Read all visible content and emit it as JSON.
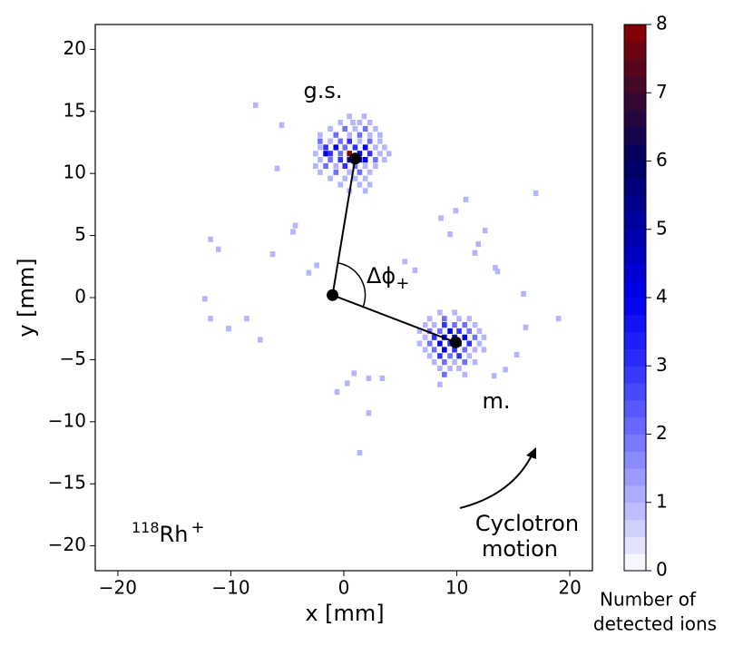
{
  "chart_data": {
    "type": "histogram2d",
    "xlabel": "x [mm]",
    "ylabel": "y [mm]",
    "xlim": [
      -22,
      22
    ],
    "ylim": [
      -22,
      22
    ],
    "xticks": [
      {
        "value": -20,
        "label": "−20"
      },
      {
        "value": -10,
        "label": "−10"
      },
      0,
      10,
      20
    ],
    "yticks": [
      {
        "value": -20,
        "label": "−20"
      },
      {
        "value": -15,
        "label": "−15"
      },
      {
        "value": -10,
        "label": "−10"
      },
      {
        "value": -5,
        "label": "−5"
      },
      0,
      5,
      10,
      15,
      20
    ],
    "bin_width": 0.45,
    "cells": [
      [
        -7.8,
        15.5,
        1
      ],
      [
        -5.5,
        13.9,
        1
      ],
      [
        -5.9,
        10.4,
        1
      ],
      [
        -4.3,
        5.8,
        1
      ],
      [
        -4.5,
        5.3,
        1
      ],
      [
        -11.8,
        4.7,
        1
      ],
      [
        -11.1,
        3.9,
        1
      ],
      [
        -6.3,
        3.5,
        1
      ],
      [
        -2.4,
        2.6,
        1
      ],
      [
        -3.1,
        2.0,
        1
      ],
      [
        -12.3,
        -0.1,
        1
      ],
      [
        -11.8,
        -1.7,
        1
      ],
      [
        -8.6,
        -1.7,
        1
      ],
      [
        -10.2,
        -2.5,
        1
      ],
      [
        -7.4,
        -3.4,
        1
      ],
      [
        -0.6,
        -7.6,
        1
      ],
      [
        0.9,
        -6.1,
        1
      ],
      [
        2.2,
        -6.5,
        1
      ],
      [
        3.4,
        -6.5,
        1
      ],
      [
        2.2,
        -9.3,
        1
      ],
      [
        1.4,
        -12.5,
        1
      ],
      [
        0.3,
        -6.9,
        1
      ],
      [
        5.4,
        2.9,
        1
      ],
      [
        6.3,
        2.2,
        1
      ],
      [
        8.6,
        6.4,
        1
      ],
      [
        10.8,
        7.9,
        1
      ],
      [
        9.9,
        7.0,
        1
      ],
      [
        11.9,
        4.3,
        1
      ],
      [
        12.5,
        5.4,
        1
      ],
      [
        11.6,
        3.6,
        1
      ],
      [
        13.4,
        2.4,
        1
      ],
      [
        13.6,
        2.1,
        1
      ],
      [
        15.9,
        0.3,
        1
      ],
      [
        17.0,
        8.4,
        1
      ],
      [
        19.0,
        -1.7,
        1
      ],
      [
        16.1,
        -2.4,
        1
      ],
      [
        15.3,
        -4.6,
        1
      ],
      [
        14.3,
        -5.8,
        1
      ],
      [
        13.3,
        -6.3,
        1
      ],
      [
        8.5,
        -7.0,
        1
      ],
      [
        9.4,
        5.1,
        1
      ],
      [
        0.5,
        14.6,
        1
      ],
      [
        1.8,
        14.6,
        1
      ],
      [
        -0.3,
        14.1,
        1
      ],
      [
        0.8,
        14.1,
        1
      ],
      [
        1.4,
        14.1,
        1
      ],
      [
        2.3,
        14.1,
        1
      ],
      [
        -1.2,
        13.6,
        1
      ],
      [
        0.1,
        13.6,
        2
      ],
      [
        1.0,
        13.6,
        1
      ],
      [
        1.9,
        13.6,
        2
      ],
      [
        2.8,
        13.6,
        1
      ],
      [
        -2.1,
        13.1,
        1
      ],
      [
        -0.7,
        13.1,
        2
      ],
      [
        0.5,
        13.1,
        1
      ],
      [
        1.4,
        13.1,
        2
      ],
      [
        2.3,
        13.1,
        1
      ],
      [
        3.2,
        13.1,
        1
      ],
      [
        -2.1,
        12.6,
        2
      ],
      [
        -1.2,
        12.6,
        1
      ],
      [
        -0.3,
        12.6,
        2
      ],
      [
        0.5,
        12.6,
        3
      ],
      [
        1.4,
        12.6,
        1
      ],
      [
        2.3,
        12.6,
        2
      ],
      [
        3.2,
        12.6,
        1
      ],
      [
        -2.1,
        12.1,
        1
      ],
      [
        -1.6,
        12.1,
        3
      ],
      [
        -0.7,
        12.1,
        4
      ],
      [
        0.1,
        12.1,
        2
      ],
      [
        1.0,
        12.1,
        3
      ],
      [
        1.9,
        12.1,
        4
      ],
      [
        2.8,
        12.1,
        1
      ],
      [
        3.6,
        12.1,
        1
      ],
      [
        -2.5,
        11.6,
        1
      ],
      [
        -1.6,
        11.6,
        4
      ],
      [
        -1.2,
        11.6,
        3
      ],
      [
        -0.3,
        11.6,
        2
      ],
      [
        0.5,
        11.6,
        8
      ],
      [
        1.4,
        11.6,
        4
      ],
      [
        2.3,
        11.6,
        3
      ],
      [
        3.2,
        11.6,
        1
      ],
      [
        4.0,
        11.6,
        1
      ],
      [
        -2.1,
        11.1,
        1
      ],
      [
        -1.2,
        11.1,
        2
      ],
      [
        -0.3,
        11.1,
        3
      ],
      [
        0.5,
        11.1,
        5
      ],
      [
        1.4,
        11.1,
        4
      ],
      [
        1.9,
        11.1,
        4
      ],
      [
        2.8,
        11.1,
        2
      ],
      [
        3.6,
        11.1,
        1
      ],
      [
        -2.5,
        10.6,
        1
      ],
      [
        -1.6,
        10.6,
        2
      ],
      [
        -0.7,
        10.6,
        1
      ],
      [
        0.1,
        10.6,
        3
      ],
      [
        1.0,
        10.6,
        2
      ],
      [
        1.9,
        10.6,
        1
      ],
      [
        2.8,
        10.6,
        1
      ],
      [
        -2.1,
        10.1,
        1
      ],
      [
        -0.7,
        10.1,
        2
      ],
      [
        0.5,
        10.1,
        1
      ],
      [
        1.4,
        10.1,
        2
      ],
      [
        2.3,
        10.1,
        1
      ],
      [
        -1.2,
        9.6,
        1
      ],
      [
        0.1,
        9.6,
        1
      ],
      [
        1.0,
        9.6,
        1
      ],
      [
        1.9,
        9.6,
        1
      ],
      [
        -0.3,
        9.1,
        1
      ],
      [
        1.4,
        9.1,
        1
      ],
      [
        2.3,
        9.1,
        1
      ],
      [
        0.5,
        8.6,
        1
      ],
      [
        1.9,
        8.6,
        1
      ],
      [
        8.5,
        -1.2,
        1
      ],
      [
        9.8,
        -1.2,
        1
      ],
      [
        7.6,
        -1.7,
        1
      ],
      [
        8.9,
        -1.7,
        2
      ],
      [
        10.2,
        -1.7,
        1
      ],
      [
        11.1,
        -1.7,
        1
      ],
      [
        7.2,
        -2.2,
        1
      ],
      [
        8.0,
        -2.2,
        1
      ],
      [
        8.9,
        -2.2,
        3
      ],
      [
        9.8,
        -2.2,
        2
      ],
      [
        10.7,
        -2.2,
        2
      ],
      [
        11.6,
        -2.2,
        1
      ],
      [
        6.7,
        -2.7,
        1
      ],
      [
        7.6,
        -2.7,
        2
      ],
      [
        8.5,
        -2.7,
        2
      ],
      [
        9.4,
        -2.7,
        4
      ],
      [
        10.2,
        -2.7,
        3
      ],
      [
        11.1,
        -2.7,
        2
      ],
      [
        12.0,
        -2.7,
        1
      ],
      [
        7.2,
        -3.2,
        1
      ],
      [
        8.0,
        -3.2,
        3
      ],
      [
        8.9,
        -3.2,
        4
      ],
      [
        9.8,
        -3.2,
        5
      ],
      [
        10.7,
        -3.2,
        4
      ],
      [
        11.6,
        -3.2,
        2
      ],
      [
        12.4,
        -3.2,
        1
      ],
      [
        6.7,
        -3.7,
        1
      ],
      [
        7.6,
        -3.7,
        2
      ],
      [
        8.5,
        -3.7,
        4
      ],
      [
        9.4,
        -3.7,
        3
      ],
      [
        10.2,
        -3.7,
        6
      ],
      [
        11.1,
        -3.7,
        3
      ],
      [
        12.0,
        -3.7,
        1
      ],
      [
        7.2,
        -4.2,
        1
      ],
      [
        8.0,
        -4.2,
        2
      ],
      [
        8.9,
        -4.2,
        4
      ],
      [
        9.8,
        -4.2,
        3
      ],
      [
        10.7,
        -4.2,
        2
      ],
      [
        11.6,
        -4.2,
        1
      ],
      [
        12.4,
        -4.2,
        1
      ],
      [
        7.6,
        -4.7,
        1
      ],
      [
        8.5,
        -4.7,
        3
      ],
      [
        9.4,
        -4.7,
        2
      ],
      [
        10.2,
        -4.7,
        3
      ],
      [
        11.1,
        -4.7,
        1
      ],
      [
        8.0,
        -5.2,
        1
      ],
      [
        8.9,
        -5.2,
        2
      ],
      [
        9.8,
        -5.2,
        1
      ],
      [
        10.7,
        -5.2,
        2
      ],
      [
        11.6,
        -5.2,
        1
      ],
      [
        8.5,
        -5.7,
        1
      ],
      [
        9.4,
        -5.7,
        1
      ],
      [
        10.2,
        -5.7,
        1
      ],
      [
        8.9,
        -6.2,
        2
      ],
      [
        10.7,
        -6.2,
        1
      ]
    ],
    "points": {
      "x": [
        -1.0,
        1.0,
        9.9
      ],
      "y": [
        0.2,
        11.2,
        -3.6
      ],
      "color": "#000000"
    },
    "colorbar": {
      "lim": [
        0,
        8
      ],
      "ticks": [
        0,
        1,
        2,
        3,
        4,
        5,
        6,
        7,
        8
      ],
      "label": [
        "Number of",
        "detected ions"
      ],
      "colors": [
        "#ffffff",
        "#b4b4ff",
        "#7070ff",
        "#3030ff",
        "#0000ee",
        "#0000a8",
        "#000060",
        "#3a0a2e",
        "#8b0000"
      ]
    },
    "annotations": {
      "ground_state": "g.s.",
      "isomer": "m.",
      "angle": {
        "symbol": "Δϕ",
        "subscript": "+"
      },
      "motion": [
        "Cyclotron",
        "motion"
      ],
      "isotope": {
        "mass": "118",
        "symbol": "Rh",
        "charge": "+"
      }
    }
  }
}
